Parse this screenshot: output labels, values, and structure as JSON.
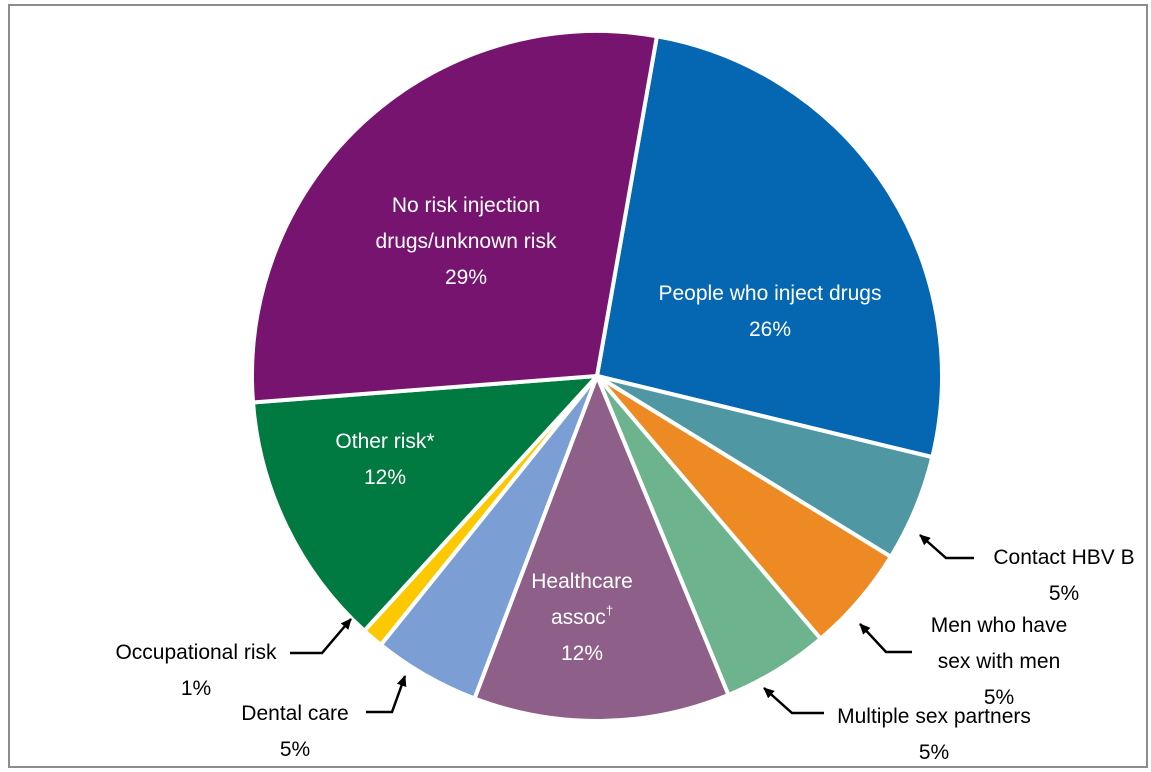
{
  "chart_data": {
    "type": "pie",
    "title": "",
    "slices": [
      {
        "label_lines": [
          "People who inject drugs"
        ],
        "value": 26,
        "value_label": "26%",
        "color": "#0567b1"
      },
      {
        "label_lines": [
          "Contact HBV B"
        ],
        "value": 5,
        "value_label": "5%",
        "color": "#4f98a3"
      },
      {
        "label_lines": [
          "Men who have",
          "sex with men"
        ],
        "value": 5,
        "value_label": "5%",
        "color": "#ee8a23"
      },
      {
        "label_lines": [
          "Multiple sex partners"
        ],
        "value": 5,
        "value_label": "5%",
        "color": "#6db38e"
      },
      {
        "label_lines": [
          "Healthcare",
          "assoc"
        ],
        "superscript": "†",
        "value": 12,
        "value_label": "12%",
        "color": "#8e6089"
      },
      {
        "label_lines": [
          "Dental care"
        ],
        "value": 5,
        "value_label": "5%",
        "color": "#7b9fd4"
      },
      {
        "label_lines": [
          "Occupational risk"
        ],
        "value": 1,
        "value_label": "1%",
        "color": "#fcc900"
      },
      {
        "label_lines": [
          "Other risk*"
        ],
        "value": 12,
        "value_label": "12%",
        "color": "#007a40"
      },
      {
        "label_lines": [
          "No risk injection",
          "drugs/unknown risk"
        ],
        "value": 29,
        "value_label": "29%",
        "color": "#761470"
      }
    ],
    "legend": "none"
  }
}
